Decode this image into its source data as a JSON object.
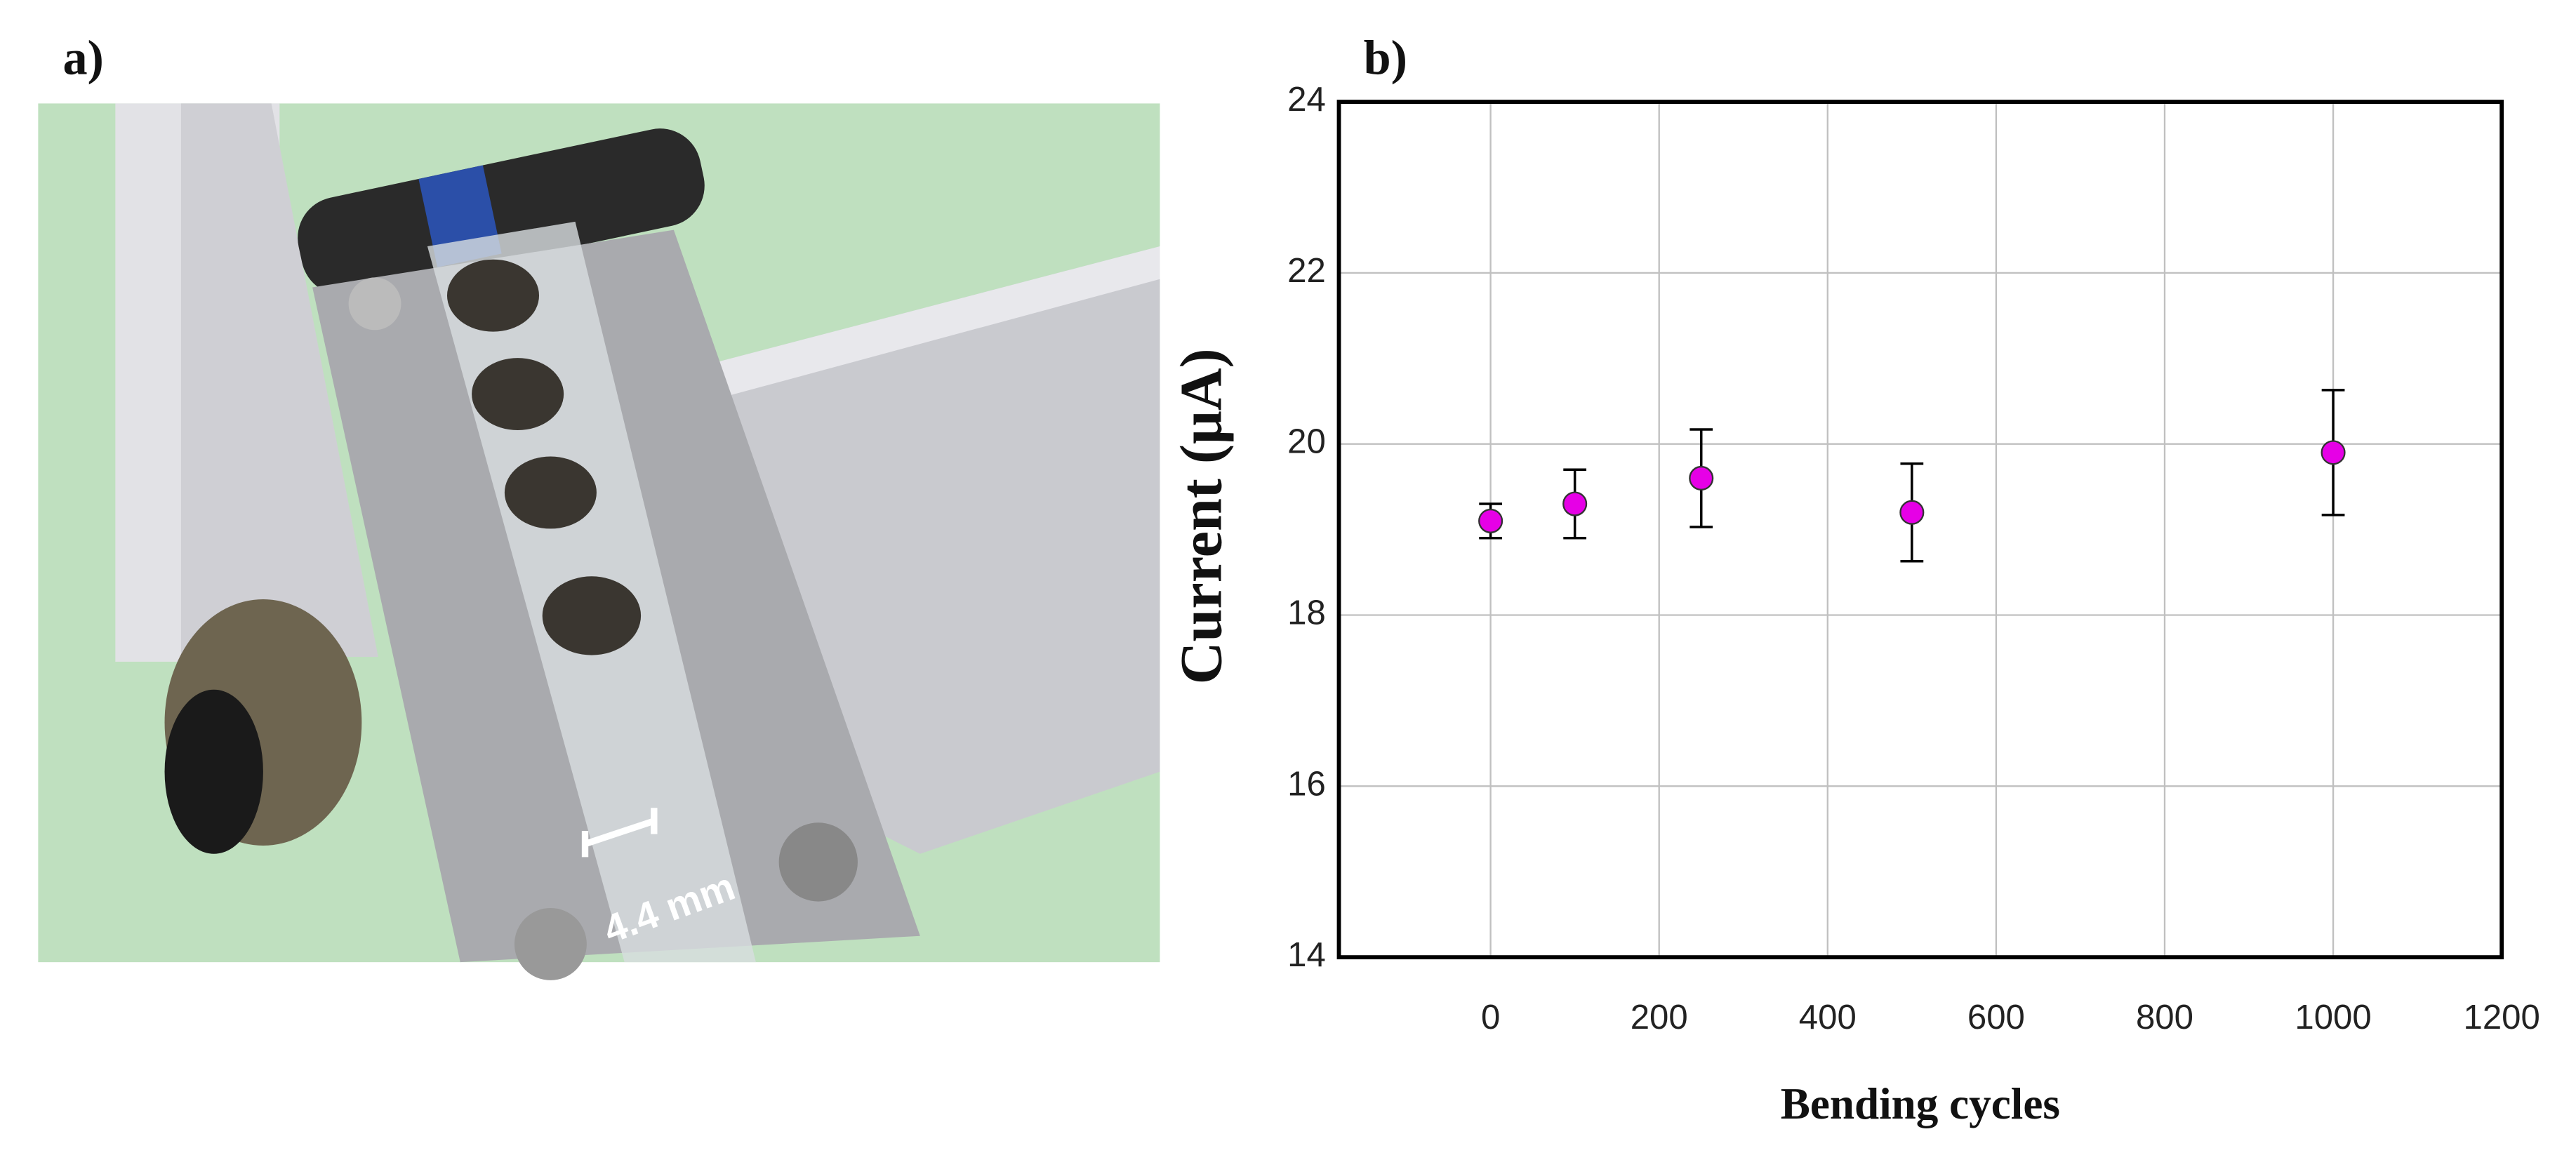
{
  "panels": [
    "a)",
    "b)"
  ],
  "photo": {
    "annotation": "4.4 mm"
  },
  "chart_data": {
    "type": "scatter",
    "x": [
      0,
      100,
      250,
      500,
      1000
    ],
    "series": [
      {
        "color": "#e600e6",
        "values": [
          19.1,
          19.3,
          19.6,
          19.2,
          19.9
        ],
        "errors": [
          0.2,
          0.4,
          0.57,
          0.57,
          0.73
        ]
      }
    ],
    "xlabel": "Bending cycles",
    "ylabel": "Current (μA)",
    "xlim": [
      -180,
      1200
    ],
    "ylim": [
      14,
      24
    ],
    "xticks": [
      0,
      200,
      400,
      600,
      800,
      1000,
      1200
    ],
    "yticks": [
      14,
      16,
      18,
      20,
      22,
      24
    ],
    "grid": true
  }
}
